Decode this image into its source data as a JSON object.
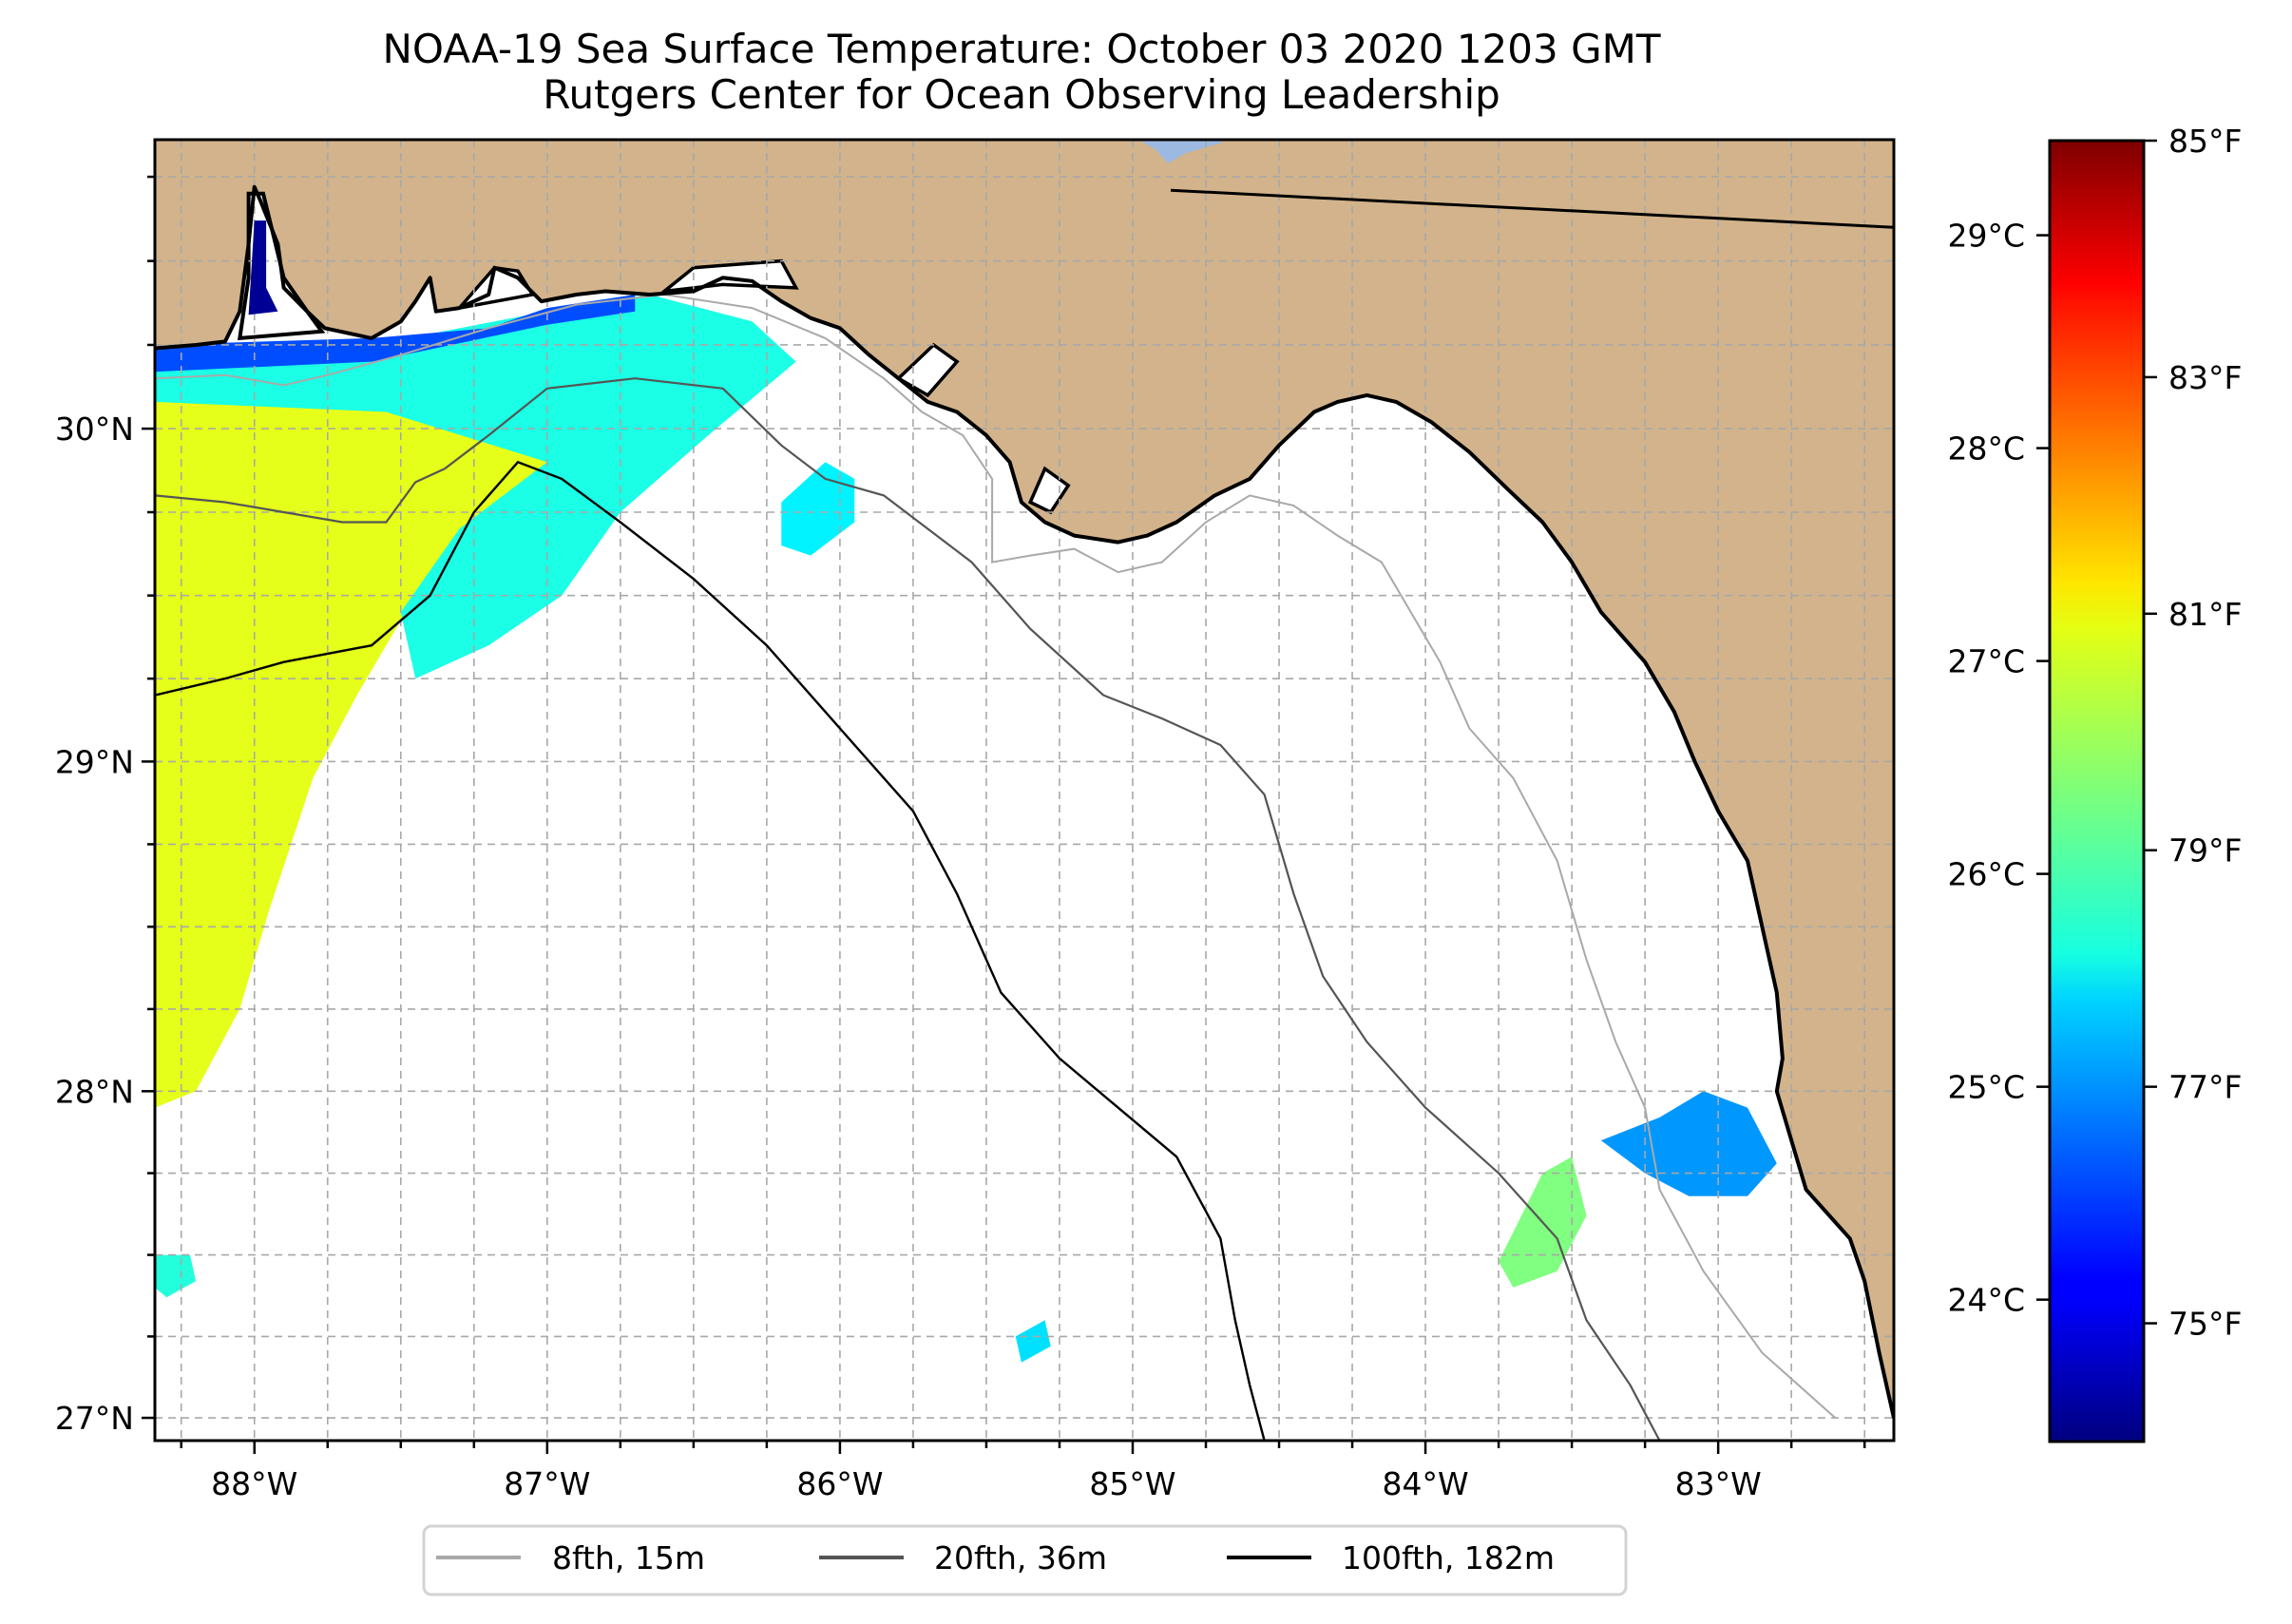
{
  "title": {
    "line1": "NOAA-19 Sea Surface Temperature: October 03 2020 1203 GMT",
    "line2": "Rutgers Center for Ocean Observing Leadership"
  },
  "colors": {
    "land": "#D2B38B",
    "lake": "#9CB9E2",
    "no_data": "#FFFFFF",
    "grid": "#A8A8A8",
    "isobath_8fth": "#A9A9A9",
    "isobath_20fth": "#555555",
    "isobath_100fth": "#000000",
    "coastline": "#000000"
  },
  "chart_data": {
    "type": "heatmap",
    "title": "NOAA-19 Sea Surface Temperature: October 03 2020 1203 GMT",
    "subtitle": "Rutgers Center for Ocean Observing Leadership",
    "projection": "mercator",
    "extent": {
      "lon": [
        -88.34,
        -82.4
      ],
      "lat": [
        26.93,
        30.86
      ]
    },
    "x_axis": {
      "ticks": [
        {
          "value": -88,
          "label": "88°W"
        },
        {
          "value": -87,
          "label": "87°W"
        },
        {
          "value": -86,
          "label": "86°W"
        },
        {
          "value": -85,
          "label": "85°W"
        },
        {
          "value": -84,
          "label": "84°W"
        },
        {
          "value": -83,
          "label": "83°W"
        }
      ],
      "minor_step": 0.25
    },
    "y_axis": {
      "ticks": [
        {
          "value": 30,
          "label": "30°N"
        },
        {
          "value": 29,
          "label": "29°N"
        },
        {
          "value": 28,
          "label": "28°N"
        },
        {
          "value": 27,
          "label": "27°N"
        }
      ],
      "minor_step": 0.25
    },
    "grid": true,
    "colorbar": {
      "colormap": "jet",
      "range_f": [
        74,
        85
      ],
      "fahrenheit_ticks": [
        {
          "value": 75,
          "label": "75°F"
        },
        {
          "value": 77,
          "label": "77°F"
        },
        {
          "value": 79,
          "label": "79°F"
        },
        {
          "value": 81,
          "label": "81°F"
        },
        {
          "value": 83,
          "label": "83°F"
        },
        {
          "value": 85,
          "label": "85°F"
        }
      ],
      "celsius_ticks": [
        {
          "value": 24,
          "label": "24°C"
        },
        {
          "value": 25,
          "label": "25°C"
        },
        {
          "value": 26,
          "label": "26°C"
        },
        {
          "value": 27,
          "label": "27°C"
        },
        {
          "value": 28,
          "label": "28°C"
        },
        {
          "value": 29,
          "label": "29°C"
        }
      ]
    },
    "legend": {
      "placement": "bottom-center",
      "entries": [
        {
          "label": "8fth, 15m",
          "color": "#A9A9A9"
        },
        {
          "label": "20fth, 36m",
          "color": "#555555"
        },
        {
          "label": "100fth, 182m",
          "color": "#000000"
        }
      ]
    },
    "sst_patches": [
      {
        "name": "western-shelf-warm",
        "temp_f": 80.6,
        "poly": [
          [
            -88.34,
            30.2
          ],
          [
            -87.6,
            30.12
          ],
          [
            -87.0,
            30.05
          ],
          [
            -86.9,
            29.95
          ],
          [
            -87.05,
            29.78
          ],
          [
            -87.2,
            29.62
          ],
          [
            -87.45,
            29.5
          ],
          [
            -87.65,
            29.2
          ],
          [
            -87.8,
            28.95
          ],
          [
            -87.95,
            28.55
          ],
          [
            -88.05,
            28.25
          ],
          [
            -88.2,
            28.0
          ],
          [
            -88.34,
            27.95
          ]
        ]
      },
      {
        "name": "western-shelf-cool-band",
        "temp_f": 78.4,
        "poly": [
          [
            -88.34,
            30.22
          ],
          [
            -87.6,
            30.25
          ],
          [
            -87.0,
            30.35
          ],
          [
            -86.65,
            30.4
          ],
          [
            -86.3,
            30.32
          ],
          [
            -86.15,
            30.2
          ],
          [
            -86.45,
            29.98
          ],
          [
            -86.75,
            29.75
          ],
          [
            -86.95,
            29.5
          ],
          [
            -87.2,
            29.35
          ],
          [
            -87.45,
            29.25
          ],
          [
            -87.5,
            29.45
          ],
          [
            -87.3,
            29.7
          ],
          [
            -87.0,
            29.9
          ],
          [
            -87.55,
            30.05
          ],
          [
            -88.34,
            30.08
          ]
        ]
      },
      {
        "name": "nearshore-cold-strip",
        "temp_f": 76.2,
        "poly": [
          [
            -88.34,
            30.25
          ],
          [
            -87.6,
            30.27
          ],
          [
            -87.2,
            30.3
          ],
          [
            -87.0,
            30.36
          ],
          [
            -86.7,
            30.4
          ],
          [
            -86.7,
            30.35
          ],
          [
            -87.0,
            30.31
          ],
          [
            -87.6,
            30.2
          ],
          [
            -88.34,
            30.17
          ]
        ]
      },
      {
        "name": "offshore-blob-86w",
        "temp_f": 78.0,
        "poly": [
          [
            -86.05,
            29.9
          ],
          [
            -85.95,
            29.85
          ],
          [
            -85.95,
            29.72
          ],
          [
            -86.1,
            29.62
          ],
          [
            -86.2,
            29.65
          ],
          [
            -86.2,
            29.78
          ]
        ]
      },
      {
        "name": "se-cluster-main",
        "temp_f": 77.0,
        "poly": [
          [
            -83.2,
            27.92
          ],
          [
            -83.05,
            28.0
          ],
          [
            -82.9,
            27.95
          ],
          [
            -82.8,
            27.78
          ],
          [
            -82.9,
            27.68
          ],
          [
            -83.1,
            27.68
          ],
          [
            -83.25,
            27.75
          ],
          [
            -83.4,
            27.85
          ]
        ]
      },
      {
        "name": "se-cluster-west",
        "temp_f": 79.5,
        "poly": [
          [
            -83.6,
            27.75
          ],
          [
            -83.5,
            27.8
          ],
          [
            -83.45,
            27.62
          ],
          [
            -83.55,
            27.45
          ],
          [
            -83.7,
            27.4
          ],
          [
            -83.75,
            27.48
          ]
        ]
      },
      {
        "name": "mid-south-patch",
        "temp_f": 77.8,
        "poly": [
          [
            -85.4,
            27.25
          ],
          [
            -85.3,
            27.3
          ],
          [
            -85.28,
            27.22
          ],
          [
            -85.38,
            27.17
          ]
        ]
      },
      {
        "name": "sw-patch",
        "temp_f": 78.5,
        "poly": [
          [
            -88.34,
            27.5
          ],
          [
            -88.22,
            27.5
          ],
          [
            -88.2,
            27.42
          ],
          [
            -88.3,
            27.37
          ],
          [
            -88.34,
            27.4
          ]
        ]
      }
    ]
  }
}
